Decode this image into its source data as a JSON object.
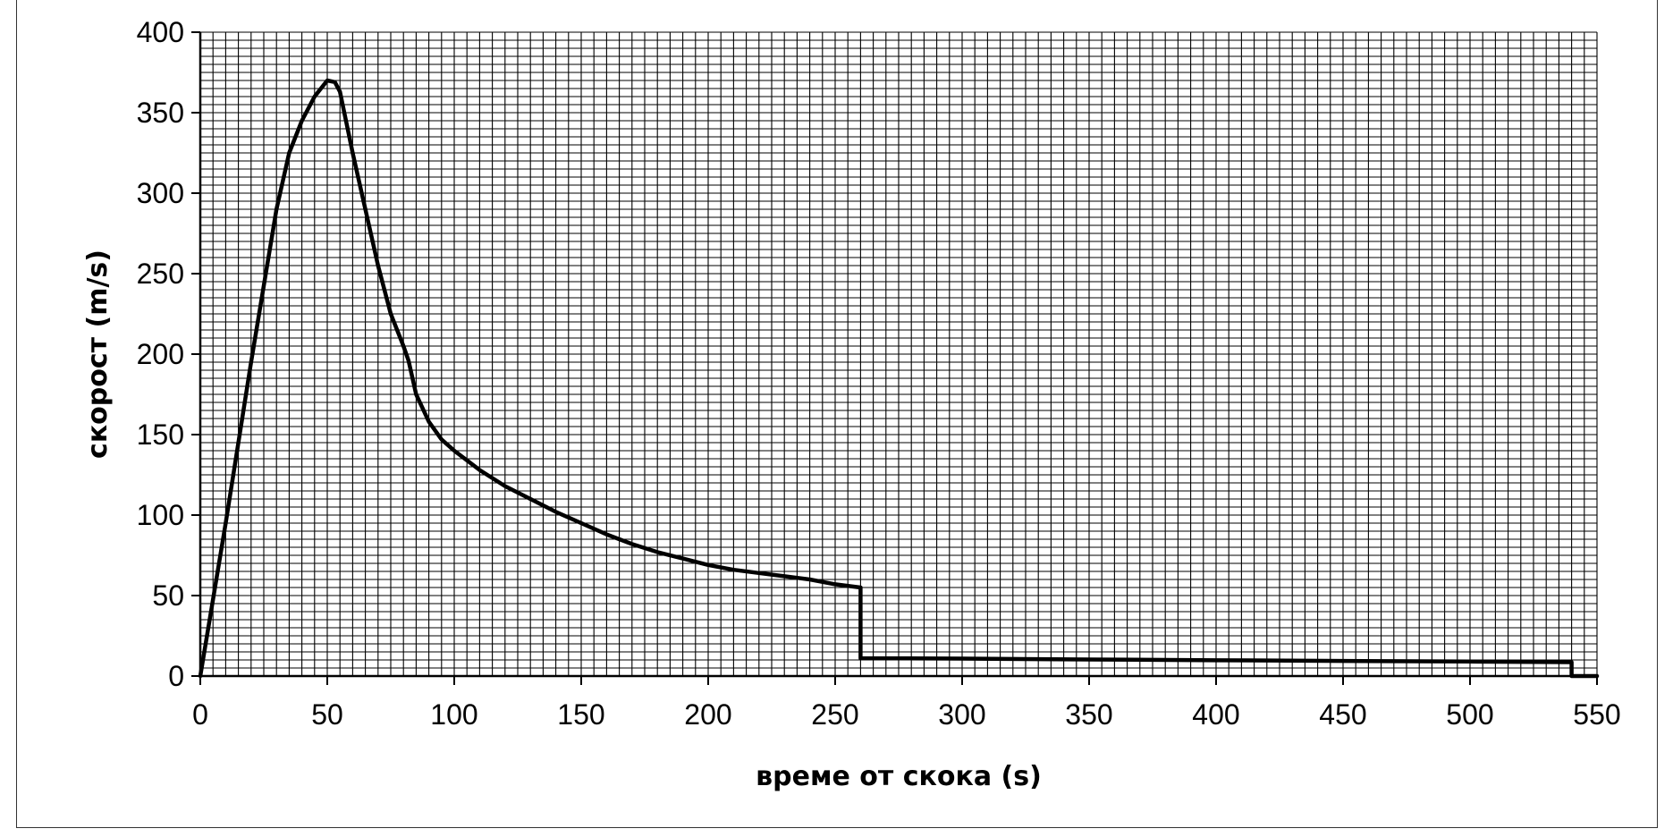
{
  "chart_data": {
    "type": "line",
    "title": "",
    "xlabel": "време от скока (s)",
    "ylabel": "скорост (m/s)",
    "xlim": [
      0,
      550
    ],
    "ylim": [
      0,
      400
    ],
    "x_ticks": [
      "0",
      "50",
      "100",
      "150",
      "200",
      "250",
      "300",
      "350",
      "400",
      "450",
      "500",
      "550"
    ],
    "y_ticks": [
      "0",
      "50",
      "100",
      "150",
      "200",
      "250",
      "300",
      "350",
      "400"
    ],
    "grid": true,
    "grid_minor_x": 5,
    "grid_minor_y": 5,
    "legend": "none",
    "line_color": "#000000",
    "series": [
      {
        "x": [
          0,
          10,
          20,
          30,
          35,
          40,
          45,
          50,
          53,
          55,
          60,
          65,
          70,
          75,
          80,
          82,
          85,
          90,
          95,
          100,
          110,
          120,
          130,
          140,
          150,
          160,
          170,
          180,
          190,
          200,
          210,
          220,
          230,
          240,
          250,
          260,
          260,
          270,
          300,
          350,
          400,
          450,
          500,
          540,
          540,
          550
        ],
        "y": [
          0,
          95,
          195,
          290,
          325,
          345,
          360,
          370,
          369,
          363,
          325,
          290,
          255,
          225,
          205,
          196,
          175,
          158,
          147,
          140,
          128,
          118,
          110,
          102,
          95,
          88,
          82,
          77,
          73,
          69,
          66,
          64,
          62,
          60,
          57,
          55,
          11,
          11,
          10.8,
          10.3,
          9.8,
          9.4,
          9,
          8.6,
          0,
          0
        ]
      }
    ]
  }
}
